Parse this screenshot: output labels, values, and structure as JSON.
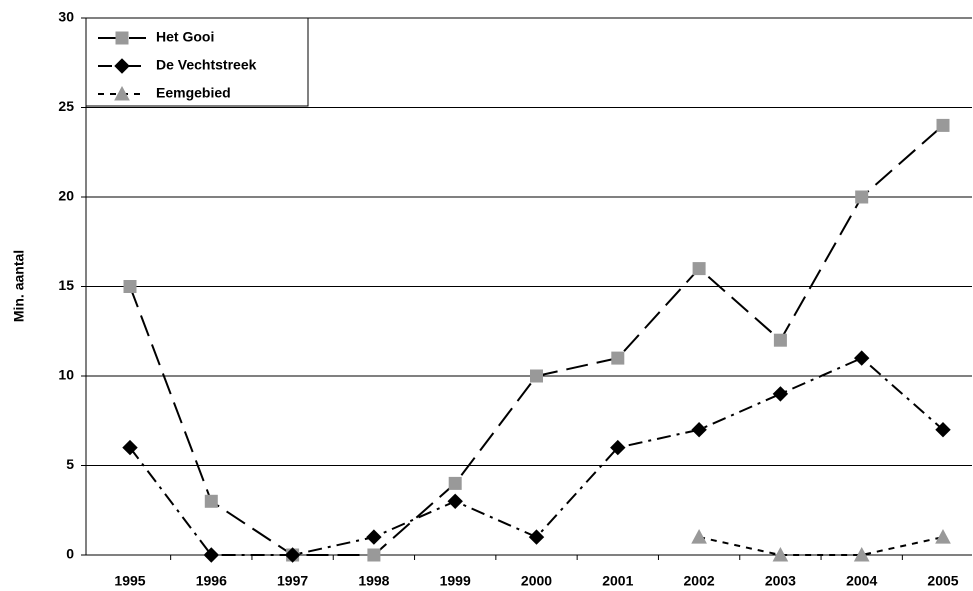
{
  "chart_data": {
    "type": "line",
    "ylabel": "Min. aantal",
    "categories": [
      "1995",
      "1996",
      "1997",
      "1998",
      "1999",
      "2000",
      "2001",
      "2002",
      "2003",
      "2004",
      "2005"
    ],
    "series": [
      {
        "name": "Het Gooi",
        "color": "#999999",
        "marker": "square",
        "dash": "long",
        "values": [
          15,
          3,
          0,
          0,
          4,
          10,
          11,
          16,
          12,
          20,
          24
        ]
      },
      {
        "name": "De Vechtstreek",
        "color": "#000000",
        "marker": "diamond",
        "dash": "dashdot",
        "values": [
          6,
          0,
          0,
          1,
          3,
          1,
          6,
          7,
          9,
          11,
          7
        ]
      },
      {
        "name": "Eemgebied",
        "color": "#999999",
        "marker": "triangle",
        "dash": "short",
        "values": [
          null,
          null,
          null,
          null,
          null,
          null,
          null,
          1,
          0,
          0,
          1
        ]
      }
    ],
    "ylim": [
      0,
      30
    ],
    "yticks": [
      0,
      5,
      10,
      15,
      20,
      25,
      30
    ],
    "grid": true,
    "legend": "upper left"
  }
}
